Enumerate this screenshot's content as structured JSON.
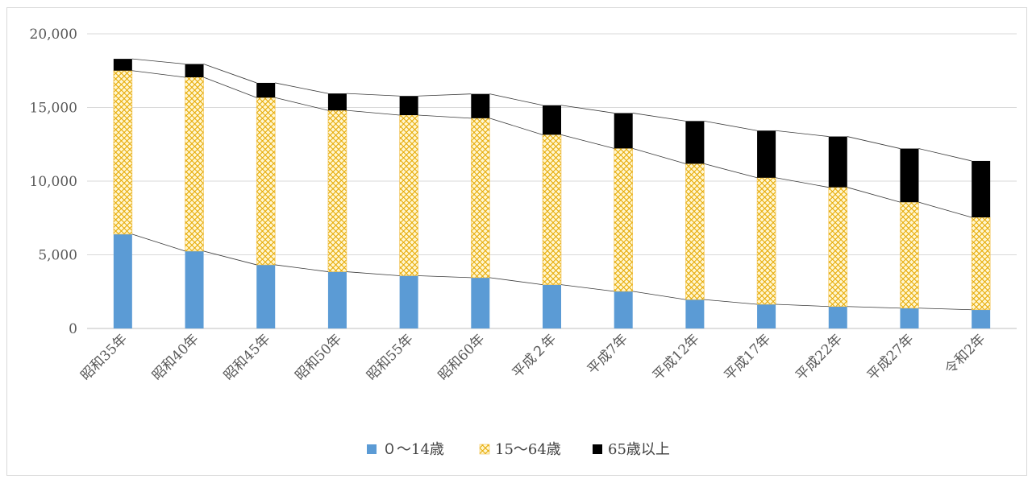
{
  "chart_data": {
    "type": "bar",
    "stacked": true,
    "categories": [
      "昭和35年",
      "昭和40年",
      "昭和45年",
      "昭和50年",
      "昭和55年",
      "昭和60年",
      "平成２年",
      "平成7年",
      "平成12年",
      "平成17年",
      "平成22年",
      "平成27年",
      "令和2年"
    ],
    "series": [
      {
        "name": "０～14歳",
        "color": "#5b9bd5",
        "pattern": "solid",
        "values": [
          6400,
          5250,
          4320,
          3850,
          3580,
          3450,
          2970,
          2520,
          1960,
          1640,
          1490,
          1380,
          1270
        ]
      },
      {
        "name": "15～64歳",
        "color": "#ffc000",
        "pattern": "lattice",
        "values": [
          11100,
          11800,
          11350,
          10950,
          10900,
          10820,
          10180,
          9700,
          9220,
          8590,
          8090,
          7190,
          6270
        ]
      },
      {
        "name": "65歳以上",
        "color": "#000000",
        "pattern": "solid",
        "values": [
          800,
          900,
          1000,
          1150,
          1300,
          1650,
          2000,
          2400,
          2900,
          3200,
          3450,
          3640,
          3830
        ]
      }
    ],
    "title": "",
    "xlabel": "",
    "ylabel": "",
    "ylim": [
      0,
      20000
    ],
    "yticks": [
      "0",
      "5,000",
      "10,000",
      "15,000",
      "20,000"
    ],
    "grid": true,
    "series_lines": true,
    "legend": "bottom"
  }
}
